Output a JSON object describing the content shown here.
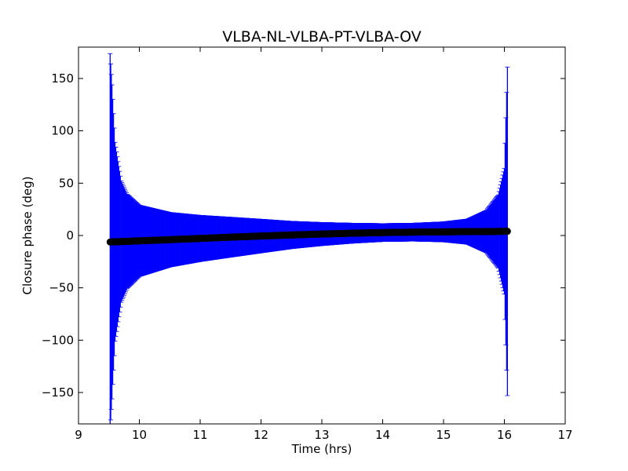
{
  "chart_data": {
    "type": "scatter",
    "title": "VLBA-NL-VLBA-PT-VLBA-OV",
    "xlabel": "Time (hrs)",
    "ylabel": "Closure phase (deg)",
    "xlim": [
      9,
      17
    ],
    "ylim": [
      -180,
      180
    ],
    "xticks": [
      9,
      10,
      11,
      12,
      13,
      14,
      15,
      16,
      17
    ],
    "yticks": [
      -150,
      -100,
      -50,
      0,
      50,
      100,
      150
    ],
    "ytick_labels": [
      "−150",
      "−100",
      "−50",
      "0",
      "50",
      "100",
      "150"
    ],
    "grid": false,
    "colors": {
      "errorbar": "#0000ff",
      "marker": "#000000"
    },
    "series": [
      {
        "marker": "circle",
        "points": [
          {
            "x": 9.52,
            "y": -6.2,
            "err": 180
          },
          {
            "x": 9.55,
            "y": -6.1,
            "err": 150
          },
          {
            "x": 9.6,
            "y": -6.0,
            "err": 95
          },
          {
            "x": 9.7,
            "y": -5.8,
            "err": 58
          },
          {
            "x": 9.8,
            "y": -5.6,
            "err": 45
          },
          {
            "x": 10.0,
            "y": -5.1,
            "err": 34
          },
          {
            "x": 10.5,
            "y": -4.0,
            "err": 26
          },
          {
            "x": 11.0,
            "y": -2.8,
            "err": 22
          },
          {
            "x": 11.5,
            "y": -1.6,
            "err": 19
          },
          {
            "x": 12.0,
            "y": -0.5,
            "err": 16
          },
          {
            "x": 12.5,
            "y": 0.5,
            "err": 13
          },
          {
            "x": 13.0,
            "y": 1.4,
            "err": 11
          },
          {
            "x": 13.5,
            "y": 2.2,
            "err": 9.5
          },
          {
            "x": 14.0,
            "y": 2.8,
            "err": 8.5
          },
          {
            "x": 14.5,
            "y": 3.2,
            "err": 8.5
          },
          {
            "x": 15.0,
            "y": 3.5,
            "err": 9.5
          },
          {
            "x": 15.4,
            "y": 3.7,
            "err": 12
          },
          {
            "x": 15.7,
            "y": 3.8,
            "err": 20
          },
          {
            "x": 15.9,
            "y": 3.9,
            "err": 35
          },
          {
            "x": 16.0,
            "y": 4.0,
            "err": 60
          },
          {
            "x": 16.05,
            "y": 4.0,
            "err": 157
          }
        ]
      }
    ]
  }
}
